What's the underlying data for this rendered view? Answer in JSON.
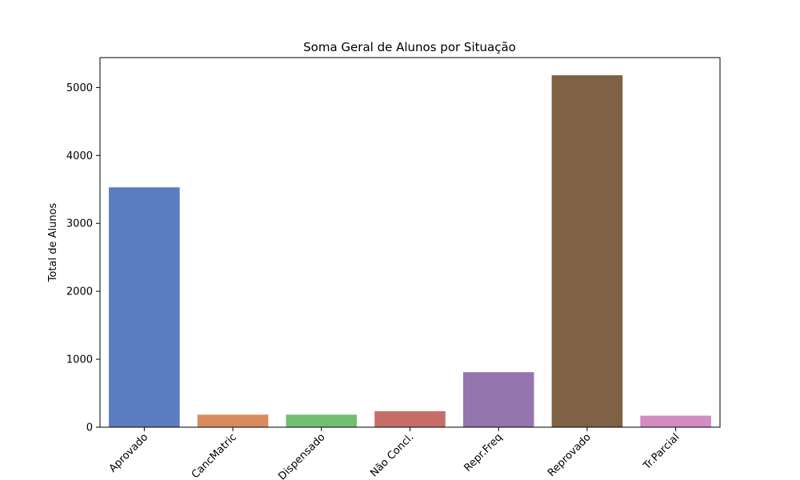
{
  "chart_data": {
    "type": "bar",
    "title": "Soma Geral de Alunos por Situação",
    "xlabel": "",
    "ylabel": "Total de Alunos",
    "categories": [
      "Aprovado",
      "CancMatric",
      "Dispensado",
      "Não Concl.",
      "Repr.Freq",
      "Reprovado",
      "Tr.Parcial"
    ],
    "values": [
      3530,
      185,
      185,
      235,
      810,
      5180,
      170
    ],
    "colors": [
      "#5b7cc0",
      "#d98b5c",
      "#73bf70",
      "#c76d69",
      "#9475ad",
      "#7f6146",
      "#d38bc2"
    ],
    "ylim": [
      0,
      5440
    ],
    "yticks": [
      0,
      1000,
      2000,
      3000,
      4000,
      5000
    ],
    "ytick_labels": [
      "0",
      "1000",
      "2000",
      "3000",
      "4000",
      "5000"
    ],
    "grid": false,
    "legend": "none"
  }
}
